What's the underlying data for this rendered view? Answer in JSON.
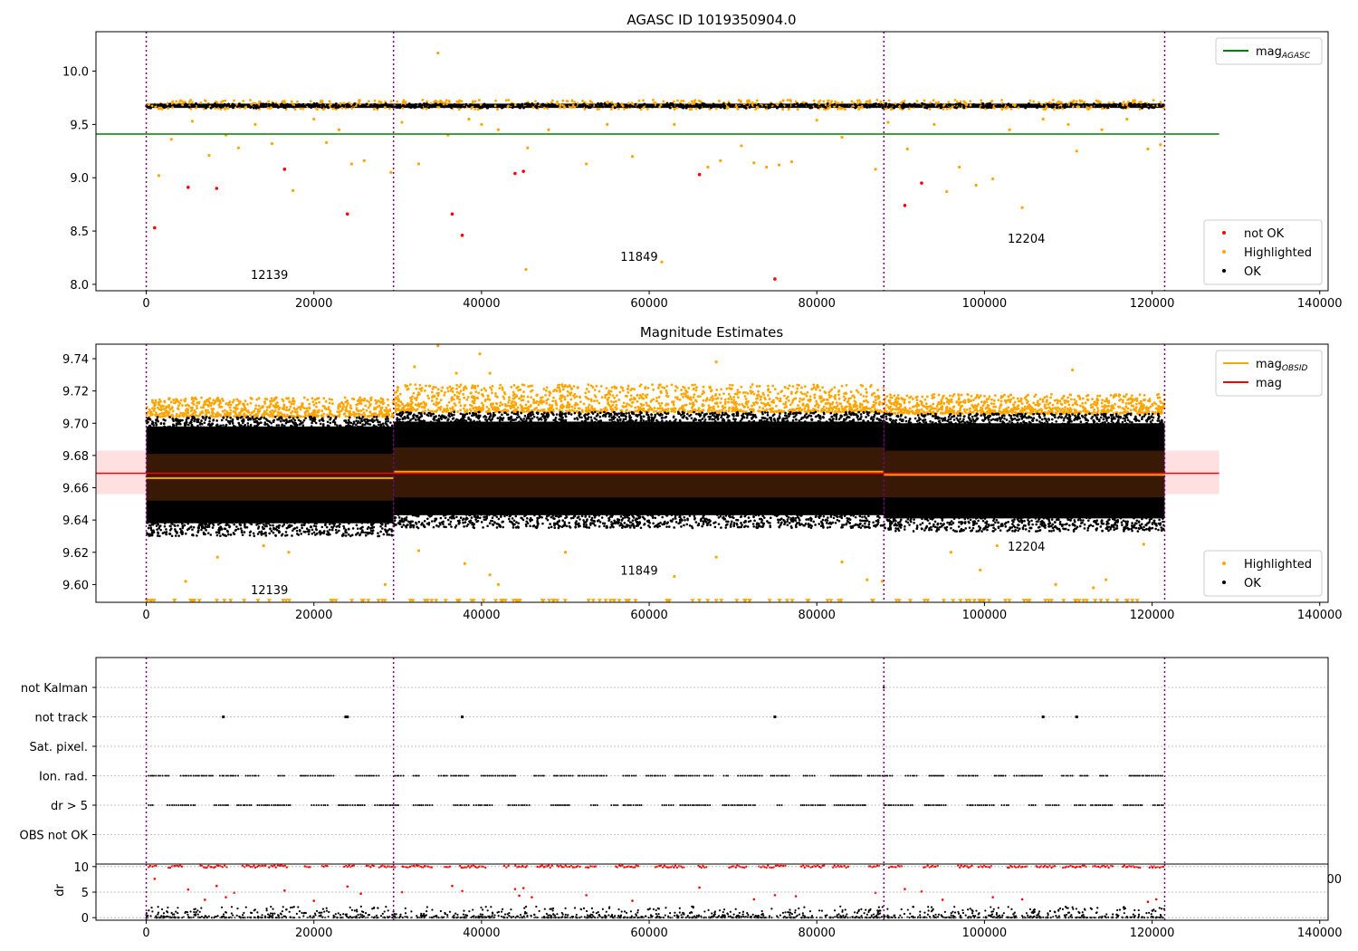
{
  "figure": {
    "title": "AGASC ID 1019350904.0"
  },
  "chart_data": [
    {
      "id": "top",
      "type": "scatter",
      "title": "",
      "xlabel": "",
      "ylabel": "",
      "xlim": [
        -6000,
        141000
      ],
      "ylim": [
        7.94,
        10.37
      ],
      "xticks": [
        0,
        20000,
        40000,
        60000,
        80000,
        100000,
        120000,
        140000
      ],
      "xtick_labels": [
        "0",
        "20000",
        "40000",
        "60000",
        "80000",
        "100000",
        "120000",
        "140000"
      ],
      "yticks": [
        8.0,
        8.5,
        9.0,
        9.5,
        10.0
      ],
      "ytick_labels": [
        "8.0",
        "8.5",
        "9.0",
        "9.5",
        "10.0"
      ],
      "grid": false,
      "obs_boundaries": [
        0,
        29500,
        88000,
        121500
      ],
      "obs_labels": [
        {
          "text": "12139",
          "x": 14700,
          "y": 8.05
        },
        {
          "text": "11849",
          "x": 58800,
          "y": 8.22
        },
        {
          "text": "12204",
          "x": 105000,
          "y": 8.39
        }
      ],
      "lines": [
        {
          "name": "mag_AGASC",
          "color": "#008000",
          "y": 9.41,
          "x": [
            -6000,
            128000
          ]
        }
      ],
      "bands": [
        {
          "name": "ok-dense",
          "color": "#000000",
          "x": [
            0,
            121500
          ],
          "y": [
            9.65,
            9.7
          ]
        }
      ],
      "series": [
        {
          "name": "not OK",
          "color": "#ff0000",
          "marker": "dot",
          "points": [
            [
              1000,
              8.53
            ],
            [
              5000,
              8.91
            ],
            [
              8400,
              8.9
            ],
            [
              16500,
              9.08
            ],
            [
              24000,
              8.66
            ],
            [
              36500,
              8.66
            ],
            [
              37700,
              8.46
            ],
            [
              44000,
              9.04
            ],
            [
              45000,
              9.06
            ],
            [
              66000,
              9.03
            ],
            [
              75000,
              8.05
            ],
            [
              90500,
              8.74
            ],
            [
              92500,
              8.95
            ]
          ]
        },
        {
          "name": "Highlighted",
          "color": "#ffa500",
          "marker": "dot",
          "points": [
            [
              1500,
              9.02
            ],
            [
              3000,
              9.36
            ],
            [
              5500,
              9.53
            ],
            [
              7500,
              9.21
            ],
            [
              9500,
              9.4
            ],
            [
              11000,
              9.28
            ],
            [
              13000,
              9.5
            ],
            [
              15000,
              9.32
            ],
            [
              17500,
              8.88
            ],
            [
              20000,
              9.55
            ],
            [
              21500,
              9.33
            ],
            [
              23000,
              9.45
            ],
            [
              24500,
              9.13
            ],
            [
              26000,
              9.16
            ],
            [
              29200,
              9.05
            ],
            [
              30500,
              9.52
            ],
            [
              32500,
              9.13
            ],
            [
              34800,
              10.17
            ],
            [
              36000,
              9.4
            ],
            [
              38500,
              9.55
            ],
            [
              40000,
              9.5
            ],
            [
              42000,
              9.45
            ],
            [
              45500,
              9.28
            ],
            [
              45300,
              8.14
            ],
            [
              48000,
              9.45
            ],
            [
              52500,
              9.13
            ],
            [
              55000,
              9.5
            ],
            [
              58000,
              9.2
            ],
            [
              61500,
              8.21
            ],
            [
              63000,
              9.5
            ],
            [
              67000,
              9.1
            ],
            [
              68500,
              9.16
            ],
            [
              71000,
              9.3
            ],
            [
              72500,
              9.14
            ],
            [
              74000,
              9.1
            ],
            [
              75500,
              9.12
            ],
            [
              77000,
              9.15
            ],
            [
              80000,
              9.54
            ],
            [
              83000,
              9.38
            ],
            [
              87000,
              9.08
            ],
            [
              88500,
              9.52
            ],
            [
              90800,
              9.27
            ],
            [
              94000,
              9.5
            ],
            [
              95500,
              8.87
            ],
            [
              97000,
              9.1
            ],
            [
              99000,
              8.93
            ],
            [
              101000,
              8.99
            ],
            [
              103000,
              9.45
            ],
            [
              104500,
              8.72
            ],
            [
              107000,
              9.55
            ],
            [
              110000,
              9.5
            ],
            [
              111000,
              9.25
            ],
            [
              114000,
              9.45
            ],
            [
              117000,
              9.55
            ],
            [
              119500,
              9.27
            ],
            [
              121000,
              9.31
            ]
          ]
        },
        {
          "name": "OK",
          "color": "#000000",
          "marker": "dot",
          "points": []
        }
      ],
      "legends": [
        {
          "placement": "top-right",
          "entries": [
            {
              "label": "mag",
              "sub": "AGASC",
              "kind": "line",
              "color": "#008000"
            }
          ]
        },
        {
          "placement": "bottom-right",
          "entries": [
            {
              "label": "not OK",
              "kind": "dot",
              "color": "#ff0000"
            },
            {
              "label": "Highlighted",
              "kind": "dot",
              "color": "#ffa500"
            },
            {
              "label": "OK",
              "kind": "dot",
              "color": "#000000"
            }
          ]
        }
      ]
    },
    {
      "id": "mid",
      "type": "scatter",
      "title": "Magnitude Estimates",
      "xlabel": "",
      "ylabel": "",
      "xlim": [
        -6000,
        141000
      ],
      "ylim": [
        9.589,
        9.749
      ],
      "xticks": [
        0,
        20000,
        40000,
        60000,
        80000,
        100000,
        120000,
        140000
      ],
      "xtick_labels": [
        "0",
        "20000",
        "40000",
        "60000",
        "80000",
        "100000",
        "120000",
        "140000"
      ],
      "yticks": [
        9.6,
        9.62,
        9.64,
        9.66,
        9.68,
        9.7,
        9.72,
        9.74
      ],
      "ytick_labels": [
        "9.60",
        "9.62",
        "9.64",
        "9.66",
        "9.68",
        "9.70",
        "9.72",
        "9.74"
      ],
      "grid": false,
      "obs_boundaries": [
        0,
        29500,
        88000,
        121500
      ],
      "obs_labels": [
        {
          "text": "12139",
          "x": 14700,
          "y": 9.594
        },
        {
          "text": "11849",
          "x": 58800,
          "y": 9.606
        },
        {
          "text": "12204",
          "x": 105000,
          "y": 9.621
        }
      ],
      "mag": {
        "name": "mag",
        "color": "#ff0000",
        "value": 9.669,
        "band": [
          9.656,
          9.683
        ],
        "x": [
          -6000,
          128000
        ]
      },
      "mag_obsid": [
        {
          "x": [
            0,
            29500
          ],
          "value": 9.666,
          "band": [
            9.652,
            9.681
          ]
        },
        {
          "x": [
            29500,
            88000
          ],
          "value": 9.67,
          "band": [
            9.654,
            9.685
          ]
        },
        {
          "x": [
            88000,
            121500
          ],
          "value": 9.668,
          "band": [
            9.654,
            9.683
          ]
        }
      ],
      "ok_envelope": [
        {
          "x": [
            0,
            29500
          ],
          "y": [
            9.63,
            9.704
          ]
        },
        {
          "x": [
            29500,
            88000
          ],
          "y": [
            9.635,
            9.707
          ]
        },
        {
          "x": [
            88000,
            121500
          ],
          "y": [
            9.633,
            9.706
          ]
        }
      ],
      "highlighted_bands": [
        {
          "x": [
            0,
            29500
          ],
          "y": [
            9.704,
            9.716
          ]
        },
        {
          "x": [
            29500,
            88000
          ],
          "y": [
            9.707,
            9.724
          ]
        },
        {
          "x": [
            88000,
            121500
          ],
          "y": [
            9.706,
            9.718
          ]
        }
      ],
      "highlighted_floor": 9.59,
      "series": [
        {
          "name": "Highlighted",
          "color": "#ffa500",
          "marker": "dot",
          "points": [
            [
              34800,
              9.748
            ],
            [
              39800,
              9.743
            ],
            [
              32000,
              9.735
            ],
            [
              37000,
              9.731
            ],
            [
              41000,
              9.731
            ],
            [
              68000,
              9.738
            ],
            [
              110500,
              9.733
            ],
            [
              4700,
              9.602
            ],
            [
              8500,
              9.617
            ],
            [
              14000,
              9.624
            ],
            [
              17000,
              9.62
            ],
            [
              28500,
              9.6
            ],
            [
              32500,
              9.621
            ],
            [
              41000,
              9.606
            ],
            [
              42000,
              9.6
            ],
            [
              38000,
              9.613
            ],
            [
              50000,
              9.62
            ],
            [
              63000,
              9.605
            ],
            [
              68000,
              9.617
            ],
            [
              83000,
              9.614
            ],
            [
              86000,
              9.603
            ],
            [
              87800,
              9.602
            ],
            [
              96000,
              9.62
            ],
            [
              99500,
              9.609
            ],
            [
              101500,
              9.624
            ],
            [
              108500,
              9.6
            ],
            [
              113000,
              9.598
            ],
            [
              114500,
              9.603
            ],
            [
              119000,
              9.625
            ]
          ]
        },
        {
          "name": "OK",
          "color": "#000000",
          "marker": "dot",
          "points": []
        }
      ],
      "legends": [
        {
          "placement": "top-right",
          "entries": [
            {
              "label": "mag",
              "sub": "OBSID",
              "kind": "line",
              "color": "#ffa500"
            },
            {
              "label": "mag",
              "kind": "line",
              "color": "#ff0000"
            }
          ]
        },
        {
          "placement": "bottom-right",
          "entries": [
            {
              "label": "Highlighted",
              "kind": "dot",
              "color": "#ffa500"
            },
            {
              "label": "OK",
              "kind": "dot",
              "color": "#000000"
            }
          ]
        }
      ]
    },
    {
      "id": "flags",
      "type": "scatter",
      "title": "",
      "xlim": [
        -6000,
        141000
      ],
      "categories": [
        "not Kalman",
        "not track",
        "Sat. pixel.",
        "Ion. rad.",
        "dr > 5",
        "OBS not OK"
      ],
      "grid": true,
      "obs_boundaries": [
        0,
        29500,
        88000,
        121500
      ],
      "series": [
        {
          "name": "not Kalman",
          "color": "#000000",
          "x": [
            88000
          ]
        },
        {
          "name": "not track",
          "color": "#000000",
          "x": [
            9200,
            23800,
            24000,
            37700,
            75000,
            107000,
            111000
          ]
        },
        {
          "name": "Sat. pixel.",
          "color": "#000000",
          "x": []
        },
        {
          "name": "Ion. rad.",
          "color": "#000000",
          "x": []
        },
        {
          "name": "dr > 5",
          "color": "#000000",
          "x": []
        },
        {
          "name": "OBS not OK",
          "color": "#000000",
          "x": []
        }
      ]
    },
    {
      "id": "dr",
      "type": "scatter",
      "title": "",
      "xlabel": "",
      "ylabel": "dr",
      "xlim": [
        -6000,
        141000
      ],
      "ylim": [
        -0.5,
        10.5
      ],
      "xticks": [
        0,
        20000,
        40000,
        60000,
        80000,
        100000,
        120000,
        140000
      ],
      "xtick_labels": [
        "0",
        "20000",
        "40000",
        "60000",
        "80000",
        "100000",
        "120000",
        "140000"
      ],
      "yticks": [
        0,
        5,
        10
      ],
      "ytick_labels": [
        "0",
        "5",
        "10"
      ],
      "grid": true,
      "stray_label": "00",
      "obs_boundaries": [
        0,
        29500,
        88000,
        121500
      ],
      "series": [
        {
          "name": "dr > 5",
          "color": "#ff0000",
          "points": [
            [
              1000,
              7.6
            ],
            [
              5000,
              5.5
            ],
            [
              7000,
              3.5
            ],
            [
              8400,
              6.2
            ],
            [
              9500,
              4.0
            ],
            [
              10500,
              4.9
            ],
            [
              16500,
              5.3
            ],
            [
              20000,
              3.3
            ],
            [
              24000,
              6.1
            ],
            [
              25600,
              4.7
            ],
            [
              30500,
              5.0
            ],
            [
              36500,
              6.2
            ],
            [
              37700,
              5.2
            ],
            [
              44000,
              5.6
            ],
            [
              44500,
              4.3
            ],
            [
              45000,
              5.8
            ],
            [
              46000,
              4.0
            ],
            [
              52500,
              4.4
            ],
            [
              58000,
              3.3
            ],
            [
              66000,
              5.9
            ],
            [
              72500,
              3.6
            ],
            [
              75000,
              4.4
            ],
            [
              77500,
              4.2
            ],
            [
              87000,
              4.9
            ],
            [
              90500,
              5.6
            ],
            [
              92500,
              5.1
            ],
            [
              95000,
              3.5
            ],
            [
              101000,
              4.0
            ],
            [
              104500,
              3.6
            ],
            [
              119500,
              3.1
            ],
            [
              120500,
              3.6
            ]
          ]
        },
        {
          "name": "OK",
          "color": "#000000",
          "points": []
        }
      ]
    }
  ]
}
